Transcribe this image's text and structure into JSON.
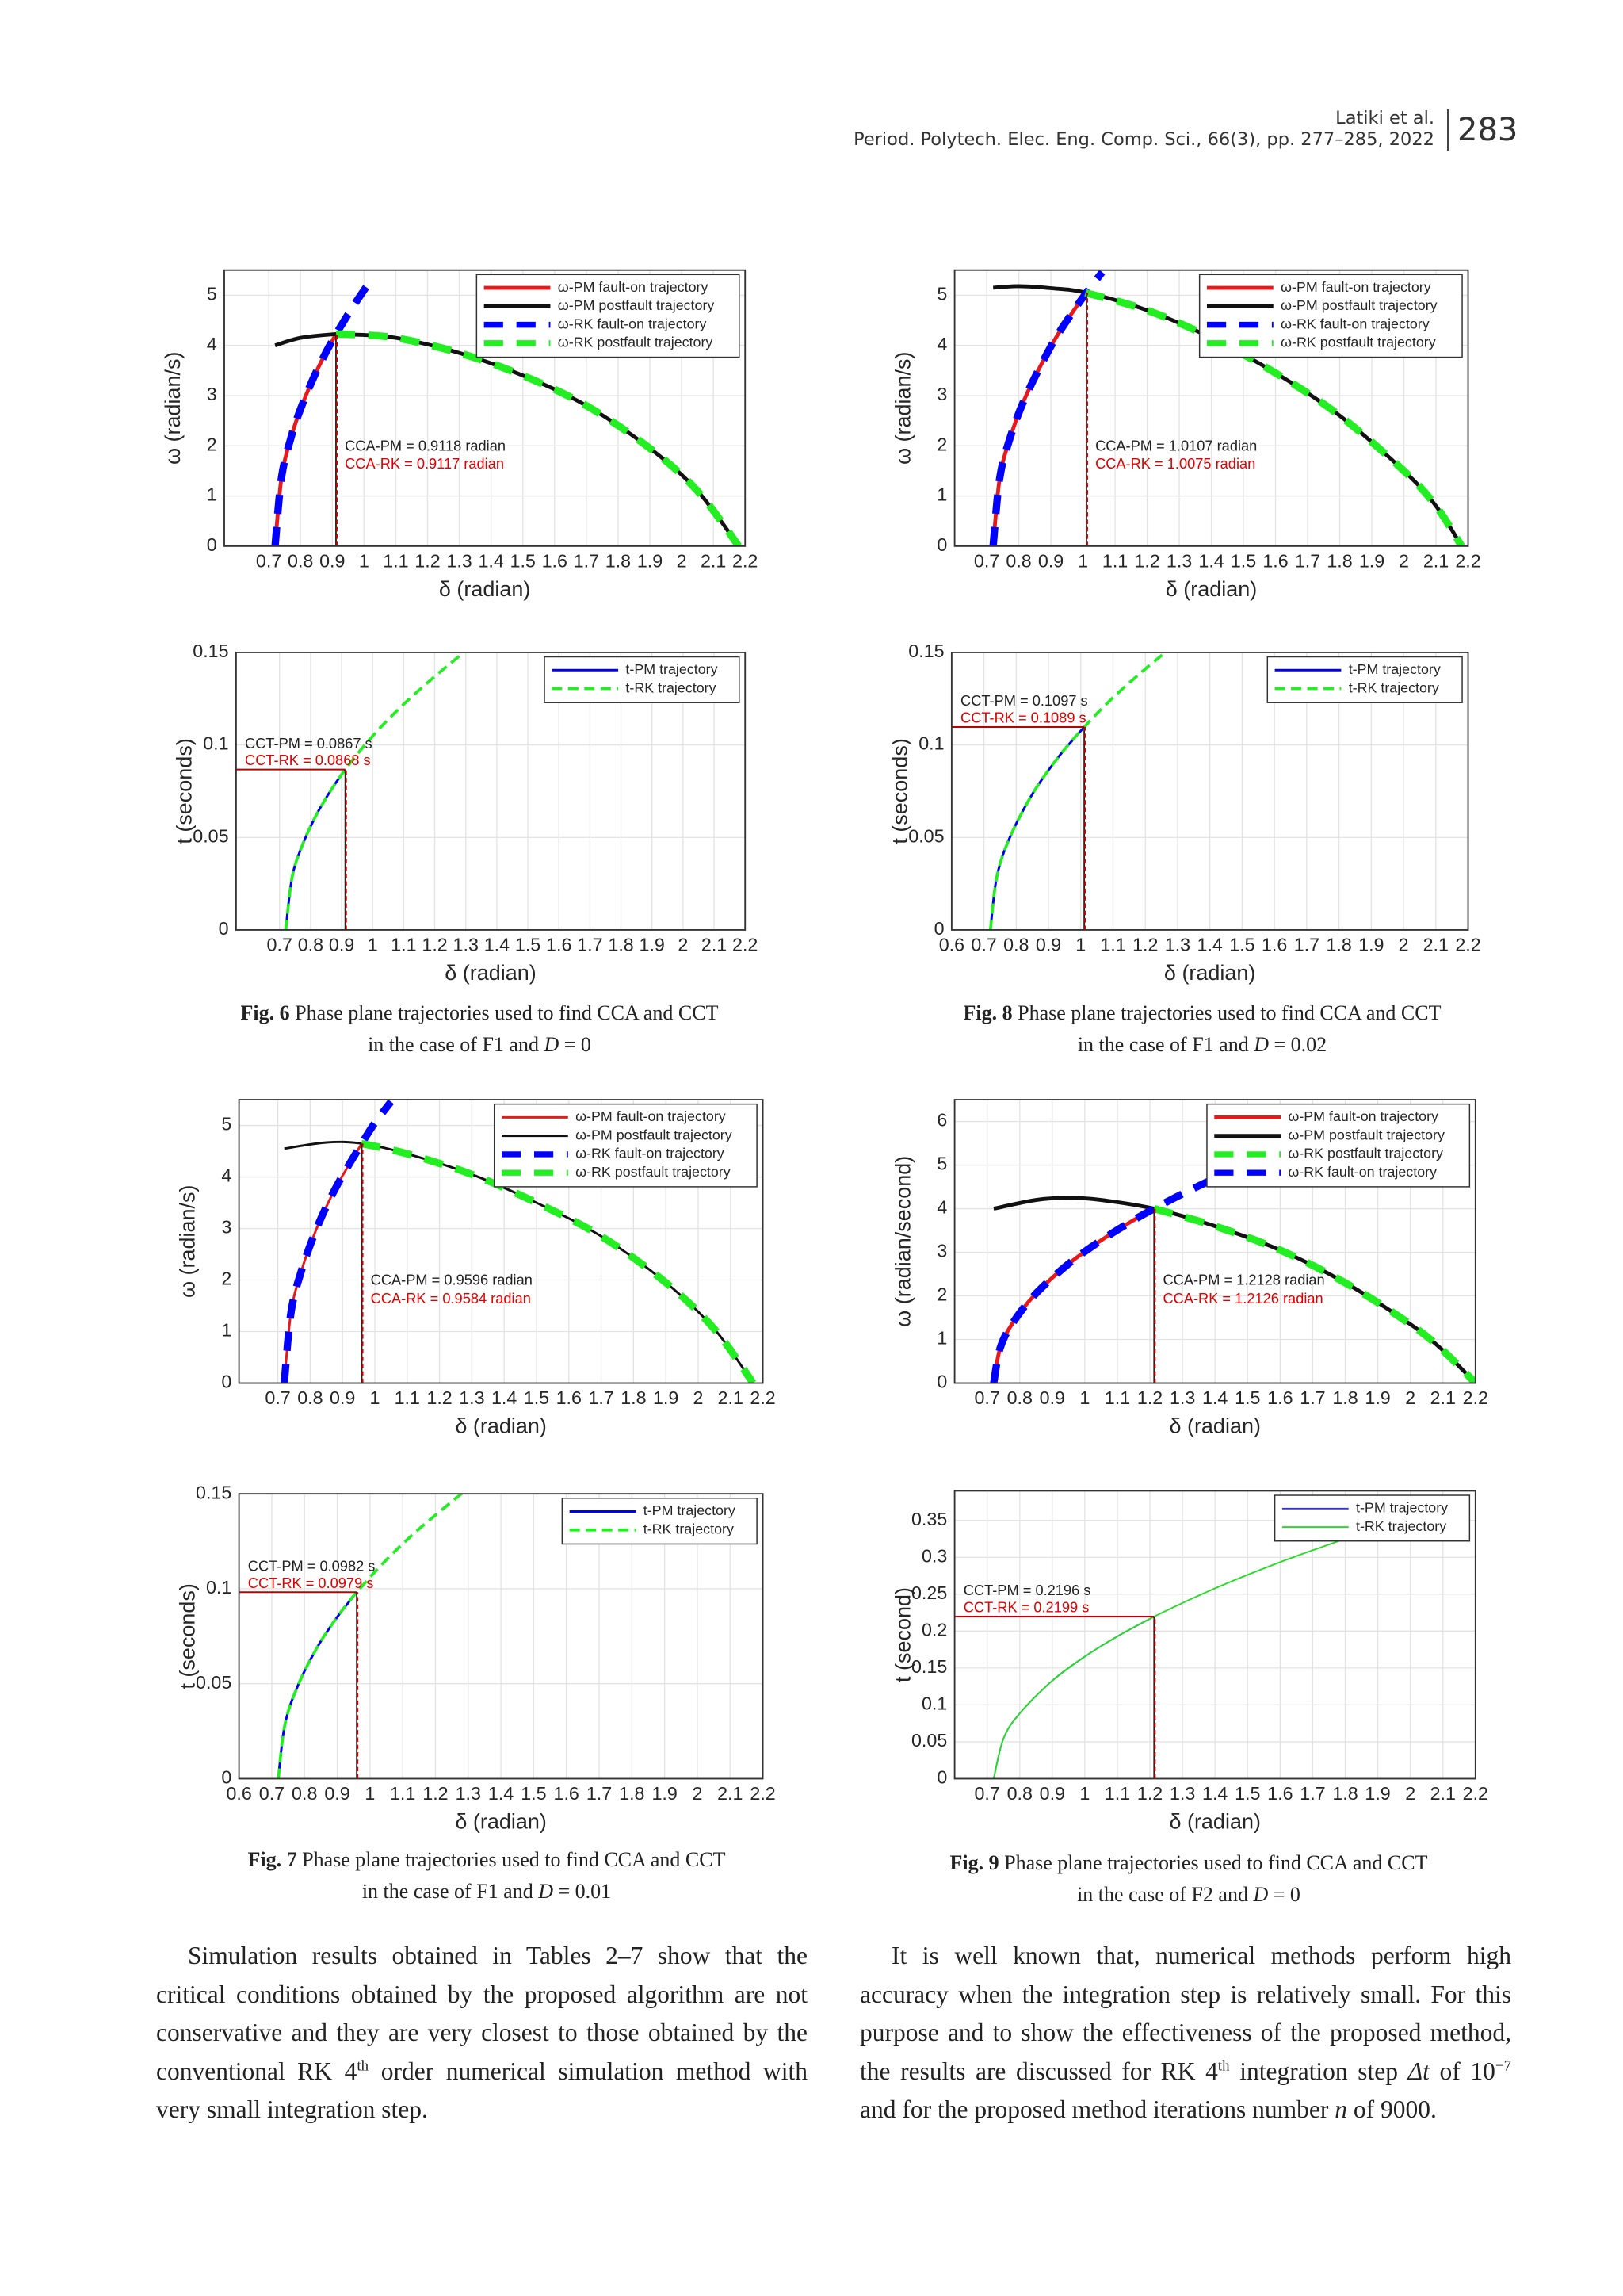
{
  "header": {
    "authors": "Latiki et al.",
    "journal": "Period. Polytech. Elec. Eng. Comp. Sci., 66(3), pp. 277–285, 2022",
    "page": "283"
  },
  "chart_data": [
    {
      "type": "line",
      "xlabel": "δ (radian)",
      "ylabel": "ω (radian/s)",
      "xlim": [
        0.56,
        2.2
      ],
      "ylim": [
        0,
        5.5
      ],
      "xticks": [
        0.7,
        0.8,
        0.9,
        1,
        1.1,
        1.2,
        1.3,
        1.4,
        1.5,
        1.6,
        1.7,
        1.8,
        1.9,
        2,
        2.1,
        2.2
      ],
      "yticks": [
        0,
        1,
        2,
        3,
        4,
        5
      ],
      "grid": true,
      "legend": "upper right",
      "series": [
        {
          "name": "ω-PM fault-on trajectory",
          "color": "#e8191c",
          "style": "thick",
          "x": [
            0.72,
            0.74,
            0.77,
            0.8,
            0.84,
            0.88,
            0.9118
          ],
          "values": [
            0,
            1.36,
            2.16,
            2.73,
            3.34,
            3.86,
            4.22
          ]
        },
        {
          "name": "ω-PM postfault trajectory",
          "color": "#111111",
          "style": "thick",
          "x": [
            0.72,
            0.8,
            0.9,
            0.95,
            1.1,
            1.3,
            1.5,
            1.7,
            1.9,
            2.05,
            2.18
          ],
          "values": [
            4.0,
            4.15,
            4.22,
            4.22,
            4.15,
            3.85,
            3.4,
            2.8,
            1.95,
            1.1,
            0
          ]
        },
        {
          "name": "ω-RK fault-on trajectory",
          "color": "#0000ff",
          "style": "thick-dashed",
          "x": [
            0.72,
            0.74,
            0.77,
            0.8,
            0.84,
            0.88,
            0.92,
            0.96,
            1.0,
            1.03
          ],
          "values": [
            0,
            1.36,
            2.16,
            2.73,
            3.34,
            3.86,
            4.31,
            4.72,
            5.1,
            5.37
          ]
        },
        {
          "name": "ω-RK postfault trajectory",
          "color": "#22ee22",
          "style": "thick-dashed",
          "x": [
            0.9117,
            0.95,
            1.1,
            1.3,
            1.5,
            1.7,
            1.9,
            2.05,
            2.18
          ],
          "values": [
            4.22,
            4.22,
            4.15,
            3.85,
            3.4,
            2.8,
            1.95,
            1.1,
            0
          ]
        }
      ],
      "annotations": [
        "CCA-PM = 0.9118 radian",
        "CCA-RK = 0.9117 radian"
      ],
      "crit": [
        0.9118,
        4.22
      ]
    },
    {
      "type": "line",
      "xlabel": "δ (radian)",
      "ylabel": "t (seconds)",
      "xlim": [
        0.56,
        2.2
      ],
      "ylim": [
        0,
        0.15
      ],
      "xticks": [
        0.7,
        0.8,
        0.9,
        1,
        1.1,
        1.2,
        1.3,
        1.4,
        1.5,
        1.6,
        1.7,
        1.8,
        1.9,
        2,
        2.1,
        2.2
      ],
      "yticks": [
        0,
        0.05,
        0.1,
        0.15
      ],
      "grid": true,
      "legend": "upper right",
      "series": [
        {
          "name": "t-PM trajectory",
          "color": "#0000ee",
          "style": "solid",
          "x": [
            0.72,
            0.74,
            0.77,
            0.82,
            0.87,
            0.9118
          ],
          "values": [
            0,
            0.028,
            0.0443,
            0.0626,
            0.0767,
            0.0867
          ]
        },
        {
          "name": "t-RK trajectory",
          "color": "#22ee22",
          "style": "dashed",
          "x": [
            0.72,
            0.74,
            0.77,
            0.82,
            0.9,
            1.0,
            1.1,
            1.2,
            1.29
          ],
          "values": [
            0,
            0.028,
            0.0443,
            0.0626,
            0.084,
            0.1048,
            0.122,
            0.137,
            0.1495
          ]
        }
      ],
      "annotations": [
        "CCT-PM = 0.0867 s",
        "CCT-RK = 0.0868 s"
      ],
      "crit": [
        0.9118,
        0.0867
      ]
    },
    {
      "type": "line",
      "xlabel": "δ (radian)",
      "ylabel": "ω (radian/s)",
      "xlim": [
        0.6,
        2.2
      ],
      "ylim": [
        0,
        5.5
      ],
      "xticks": [
        0.7,
        0.8,
        0.9,
        1,
        1.1,
        1.2,
        1.3,
        1.4,
        1.5,
        1.6,
        1.7,
        1.8,
        1.9,
        2,
        2.1,
        2.2
      ],
      "yticks": [
        0,
        1,
        2,
        3,
        4,
        5
      ],
      "grid": true,
      "legend": "upper right",
      "series": [
        {
          "name": "ω-PM fault-on trajectory",
          "color": "#e8191c",
          "style": "thick",
          "x": [
            0.72,
            0.74,
            0.77,
            0.82,
            0.9,
            0.96,
            1.0107
          ],
          "values": [
            0,
            1.33,
            2.1,
            2.96,
            3.98,
            4.59,
            5.05
          ]
        },
        {
          "name": "ω-PM postfault trajectory",
          "color": "#111111",
          "style": "thick",
          "x": [
            0.72,
            0.8,
            0.9,
            1.0107,
            1.2,
            1.4,
            1.6,
            1.8,
            2.0,
            2.1,
            2.18
          ],
          "values": [
            5.15,
            5.18,
            5.14,
            5.05,
            4.7,
            4.15,
            3.45,
            2.6,
            1.5,
            0.8,
            0
          ]
        },
        {
          "name": "ω-RK fault-on trajectory",
          "color": "#0000ff",
          "style": "thick-dashed",
          "x": [
            0.72,
            0.74,
            0.77,
            0.82,
            0.9,
            0.96,
            1.0107,
            1.06
          ],
          "values": [
            0,
            1.33,
            2.1,
            2.96,
            3.98,
            4.59,
            5.05,
            5.46
          ]
        },
        {
          "name": "ω-RK postfault trajectory",
          "color": "#22ee22",
          "style": "thick-dashed",
          "x": [
            1.0075,
            1.2,
            1.4,
            1.6,
            1.8,
            2.0,
            2.1,
            2.18
          ],
          "values": [
            5.05,
            4.7,
            4.15,
            3.45,
            2.6,
            1.5,
            0.8,
            0
          ]
        }
      ],
      "annotations": [
        "CCA-PM = 1.0107 radian",
        "CCA-RK = 1.0075 radian"
      ],
      "crit": [
        1.0107,
        5.05
      ]
    },
    {
      "type": "line",
      "xlabel": "δ (radian)",
      "ylabel": "t (seconds)",
      "xlim": [
        0.6,
        2.2
      ],
      "ylim": [
        0,
        0.15
      ],
      "xticks": [
        0.6,
        0.7,
        0.8,
        0.9,
        1,
        1.1,
        1.2,
        1.3,
        1.4,
        1.5,
        1.6,
        1.7,
        1.8,
        1.9,
        2,
        2.1,
        2.2
      ],
      "yticks": [
        0,
        0.05,
        0.1,
        0.15
      ],
      "grid": true,
      "legend": "upper right",
      "series": [
        {
          "name": "t-PM trajectory",
          "color": "#0000ee",
          "style": "solid",
          "x": [
            0.72,
            0.74,
            0.78,
            0.85,
            0.93,
            1.0107
          ],
          "values": [
            0,
            0.0288,
            0.0499,
            0.0734,
            0.0933,
            0.1097
          ]
        },
        {
          "name": "t-RK trajectory",
          "color": "#22ee22",
          "style": "dashed",
          "x": [
            0.72,
            0.74,
            0.78,
            0.85,
            0.93,
            1.0107,
            1.1,
            1.2,
            1.26
          ],
          "values": [
            0,
            0.0288,
            0.0499,
            0.0734,
            0.0933,
            0.1097,
            0.1256,
            0.1411,
            0.1497
          ]
        }
      ],
      "annotations": [
        "CCT-PM = 0.1097 s",
        "CCT-RK = 0.1089 s"
      ],
      "crit": [
        1.0107,
        0.1097
      ]
    },
    {
      "type": "line",
      "xlabel": "δ (radian)",
      "ylabel": "ω (radian/s)",
      "xlim": [
        0.58,
        2.2
      ],
      "ylim": [
        0,
        5.5
      ],
      "xticks": [
        0.7,
        0.8,
        0.9,
        1,
        1.1,
        1.2,
        1.3,
        1.4,
        1.5,
        1.6,
        1.7,
        1.8,
        1.9,
        2,
        2.1,
        2.2
      ],
      "yticks": [
        0,
        1,
        2,
        3,
        4,
        5
      ],
      "grid": true,
      "legend": "upper right",
      "series": [
        {
          "name": "ω-PM fault-on trajectory",
          "color": "#e8191c",
          "style": "solid",
          "x": [
            0.72,
            0.74,
            0.77,
            0.82,
            0.88,
            0.9596
          ],
          "values": [
            0,
            1.34,
            2.12,
            3.0,
            3.8,
            4.65
          ]
        },
        {
          "name": "ω-PM postfault trajectory",
          "color": "#111111",
          "style": "solid",
          "x": [
            0.72,
            0.85,
            0.9596,
            1.1,
            1.3,
            1.5,
            1.7,
            1.9,
            2.05,
            2.17
          ],
          "values": [
            4.55,
            4.67,
            4.65,
            4.45,
            4.05,
            3.5,
            2.85,
            1.95,
            1.05,
            0
          ]
        },
        {
          "name": "ω-RK fault-on trajectory",
          "color": "#0000ff",
          "style": "thick-dashed",
          "x": [
            0.72,
            0.74,
            0.77,
            0.82,
            0.88,
            0.9596,
            1.0,
            1.05
          ],
          "values": [
            0,
            1.34,
            2.12,
            3.0,
            3.8,
            4.65,
            5.05,
            5.46
          ]
        },
        {
          "name": "ω-RK postfault trajectory",
          "color": "#22ee22",
          "style": "thick-dashed",
          "x": [
            0.9584,
            1.1,
            1.3,
            1.5,
            1.7,
            1.9,
            2.05,
            2.17
          ],
          "values": [
            4.65,
            4.45,
            4.05,
            3.5,
            2.85,
            1.95,
            1.05,
            0
          ]
        }
      ],
      "annotations": [
        "CCA-PM = 0.9596 radian",
        "CCA-RK = 0.9584 radian"
      ],
      "crit": [
        0.9596,
        4.65
      ]
    },
    {
      "type": "line",
      "xlabel": "δ (radian)",
      "ylabel": "t (seconds)",
      "xlim": [
        0.6,
        2.2
      ],
      "ylim": [
        0,
        0.15
      ],
      "xticks": [
        0.6,
        0.7,
        0.8,
        0.9,
        1,
        1.1,
        1.2,
        1.3,
        1.4,
        1.5,
        1.6,
        1.7,
        1.8,
        1.9,
        2,
        2.1,
        2.2
      ],
      "yticks": [
        0,
        0.05,
        0.1,
        0.15
      ],
      "grid": true,
      "legend": "upper right",
      "series": [
        {
          "name": "t-PM trajectory",
          "color": "#0000ee",
          "style": "solid",
          "x": [
            0.72,
            0.74,
            0.78,
            0.84,
            0.9,
            0.9596
          ],
          "values": [
            0,
            0.0284,
            0.0491,
            0.0695,
            0.0851,
            0.0982
          ]
        },
        {
          "name": "t-RK trajectory",
          "color": "#22ee22",
          "style": "dashed",
          "x": [
            0.72,
            0.74,
            0.78,
            0.84,
            0.9,
            0.9596,
            1.05,
            1.15,
            1.28
          ],
          "values": [
            0,
            0.0284,
            0.0491,
            0.0695,
            0.0851,
            0.0982,
            0.1152,
            0.1315,
            0.1501
          ]
        }
      ],
      "annotations": [
        "CCT-PM = 0.0982 s",
        "CCT-RK = 0.0979 s"
      ],
      "crit": [
        0.9596,
        0.0982
      ]
    },
    {
      "type": "line",
      "xlabel": "δ (radian)",
      "ylabel": "ω (radian/second)",
      "xlim": [
        0.6,
        2.2
      ],
      "ylim": [
        0,
        6.5
      ],
      "xticks": [
        0.7,
        0.8,
        0.9,
        1,
        1.1,
        1.2,
        1.3,
        1.4,
        1.5,
        1.6,
        1.7,
        1.8,
        1.9,
        2,
        2.1,
        2.2
      ],
      "yticks": [
        0,
        1,
        2,
        3,
        4,
        5,
        6
      ],
      "grid": true,
      "legend": "upper right",
      "series": [
        {
          "name": "ω-PM fault-on trajectory",
          "color": "#e8191c",
          "style": "thick",
          "x": [
            0.72,
            0.74,
            0.78,
            0.85,
            0.95,
            1.05,
            1.15,
            1.2128
          ],
          "values": [
            0,
            0.806,
            1.396,
            2.055,
            2.734,
            3.274,
            3.738,
            4.0
          ]
        },
        {
          "name": "ω-PM postfault trajectory",
          "color": "#111111",
          "style": "thick",
          "x": [
            0.72,
            0.85,
            0.95,
            1.05,
            1.2128,
            1.4,
            1.6,
            1.8,
            2.0,
            2.1,
            2.2
          ],
          "values": [
            4.0,
            4.2,
            4.25,
            4.2,
            4.0,
            3.6,
            3.05,
            2.3,
            1.35,
            0.75,
            0
          ]
        },
        {
          "name": "ω-RK postfault trajectory",
          "color": "#22ee22",
          "style": "thick-dashed",
          "x": [
            1.2126,
            1.4,
            1.6,
            1.8,
            2.0,
            2.1,
            2.2
          ],
          "values": [
            4.0,
            3.6,
            3.05,
            2.3,
            1.35,
            0.75,
            0
          ]
        },
        {
          "name": "ω-RK fault-on trajectory",
          "color": "#0000ff",
          "style": "thick-dashed",
          "x": [
            0.72,
            0.74,
            0.78,
            0.85,
            0.95,
            1.05,
            1.15,
            1.2128,
            1.3,
            1.4,
            1.47
          ],
          "values": [
            0,
            0.806,
            1.396,
            2.055,
            2.734,
            3.274,
            3.738,
            4.0,
            4.34,
            4.7,
            4.94
          ]
        }
      ],
      "annotations": [
        "CCA-PM = 1.2128 radian",
        "CCA-RK = 1.2126 radian"
      ],
      "crit": [
        1.2128,
        4.0
      ]
    },
    {
      "type": "line",
      "xlabel": "δ (radian)",
      "ylabel": "t (second)",
      "xlim": [
        0.6,
        2.2
      ],
      "ylim": [
        0,
        0.39
      ],
      "xticks": [
        0.7,
        0.8,
        0.9,
        1,
        1.1,
        1.2,
        1.3,
        1.4,
        1.5,
        1.6,
        1.7,
        1.8,
        1.9,
        2,
        2.1,
        2.2
      ],
      "yticks": [
        0,
        0.05,
        0.1,
        0.15,
        0.2,
        0.25,
        0.3,
        0.35
      ],
      "grid": true,
      "legend": "upper right",
      "series": [
        {
          "name": "t-PM trajectory",
          "color": "#3333dd",
          "style": "thin",
          "x": [
            0.72,
            0.75,
            0.8,
            0.9,
            1.0,
            1.1,
            1.2128
          ],
          "values": [
            0,
            0.0542,
            0.0885,
            0.1327,
            0.1655,
            0.1928,
            0.2196
          ]
        },
        {
          "name": "t-RK trajectory",
          "color": "#22dd22",
          "style": "thin",
          "x": [
            0.72,
            0.75,
            0.8,
            0.9,
            1.0,
            1.1,
            1.2128,
            1.4,
            1.6,
            1.8,
            1.9
          ],
          "values": [
            0,
            0.0542,
            0.0885,
            0.1327,
            0.1655,
            0.1928,
            0.2196,
            0.2579,
            0.2934,
            0.3251,
            0.3398
          ]
        }
      ],
      "annotations": [
        "CCT-PM = 0.2196 s",
        "CCT-RK = 0.2199 s"
      ],
      "crit": [
        1.2128,
        0.2196
      ]
    }
  ],
  "captions": [
    {
      "label": "Fig. 6",
      "text": "Phase plane trajectories used to find CCA and CCT",
      "case": "in the case of F1 and",
      "var": "D",
      "eq": "= 0"
    },
    {
      "label": "Fig. 8",
      "text": "Phase plane trajectories used to find CCA and CCT",
      "case": "in the case of F1 and",
      "var": "D",
      "eq": "= 0.02"
    },
    {
      "label": "Fig. 7",
      "text": "Phase plane trajectories used to find CCA and CCT",
      "case": "in the case of F1 and",
      "var": "D",
      "eq": "= 0.01"
    },
    {
      "label": "Fig. 9",
      "text": "Phase plane trajectories used to find CCA and CCT",
      "case": "in the case of F2 and",
      "var": "D",
      "eq": "= 0"
    }
  ],
  "paragraphs": [
    [
      "Simulation results obtained in Tables 2–7 show that the critical conditions obtained by the proposed algorithm are not conservative and they are very closest to those obtained by the conventional RK 4",
      "th",
      "order numerical simulation method with very small integration step."
    ],
    [
      "It is well known that, numerical methods perform high accuracy when the integration step is relatively small. For this purpose and to show the effectiveness of the proposed method, the results are discussed for RK 4",
      "th",
      "integration step",
      "Δt",
      "of 10",
      "−7",
      "and for the proposed method iterations number",
      "n",
      "of 9000."
    ]
  ]
}
